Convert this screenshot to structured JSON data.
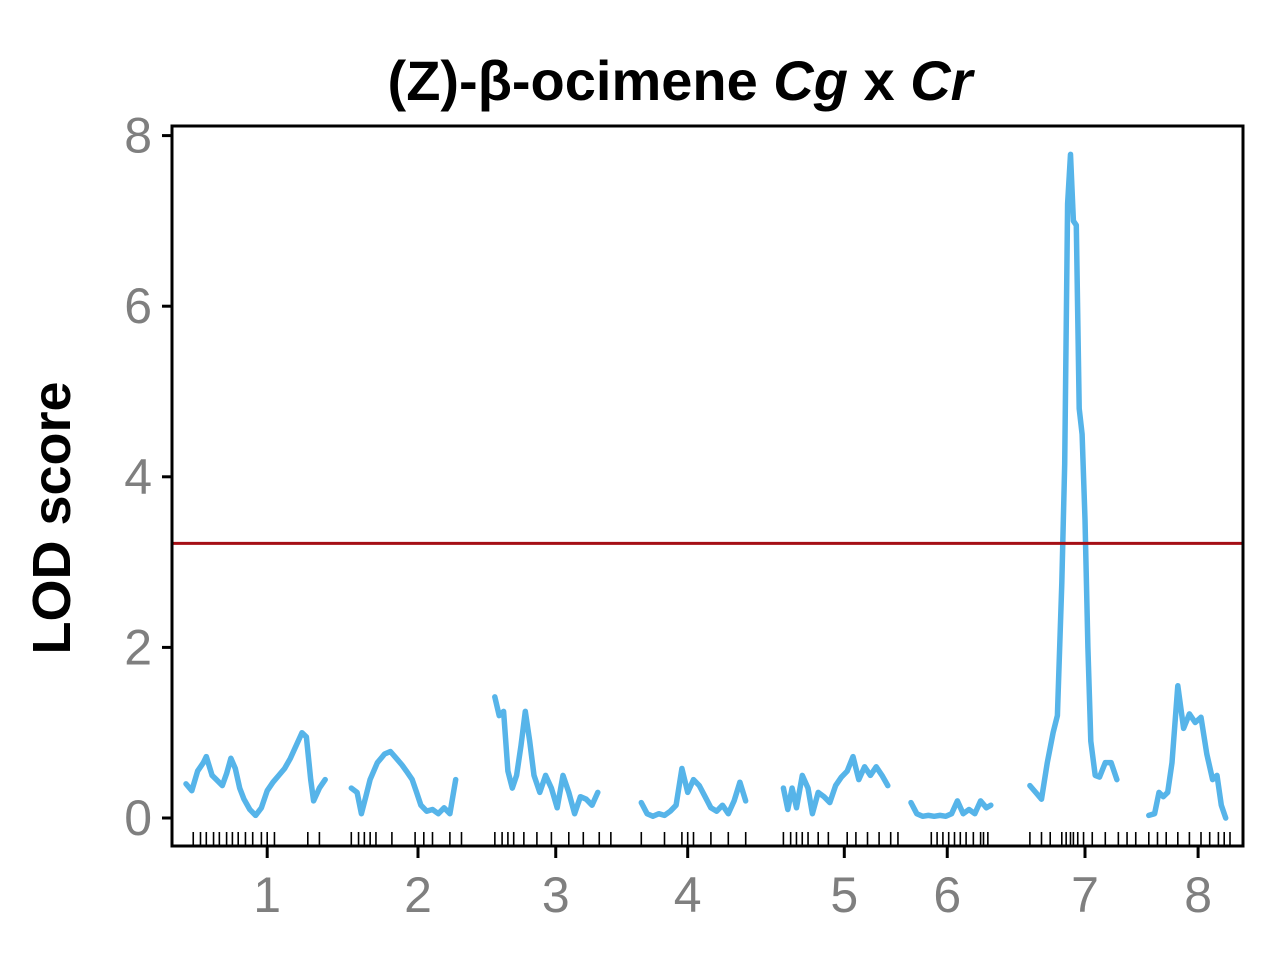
{
  "chart_data": {
    "type": "line",
    "title_main": "(Z)-β-ocimene ",
    "title_italic_1": "Cg",
    "title_mid": " x ",
    "title_italic_2": "Cr",
    "ylabel": "LOD score",
    "xlabel": "",
    "ylim": [
      0,
      8
    ],
    "yticks": [
      "0",
      "2",
      "4",
      "6",
      "8"
    ],
    "threshold": 3.22,
    "colors": {
      "series": "#56b4e9",
      "threshold": "#a50f15",
      "ticks": "#7f7f7f"
    },
    "chromosomes": [
      {
        "label": "1",
        "start": 0.0,
        "end": 1.0,
        "center": 0.56,
        "markers": [
          0.05,
          0.1,
          0.14,
          0.19,
          0.23,
          0.28,
          0.32,
          0.36,
          0.41,
          0.46,
          0.52,
          0.56,
          0.61,
          0.84,
          0.92
        ],
        "lod": [
          [
            0.0,
            0.4
          ],
          [
            0.04,
            0.32
          ],
          [
            0.08,
            0.55
          ],
          [
            0.12,
            0.65
          ],
          [
            0.14,
            0.72
          ],
          [
            0.18,
            0.5
          ],
          [
            0.21,
            0.45
          ],
          [
            0.25,
            0.38
          ],
          [
            0.28,
            0.52
          ],
          [
            0.31,
            0.7
          ],
          [
            0.34,
            0.58
          ],
          [
            0.37,
            0.35
          ],
          [
            0.4,
            0.22
          ],
          [
            0.44,
            0.1
          ],
          [
            0.48,
            0.03
          ],
          [
            0.52,
            0.12
          ],
          [
            0.56,
            0.32
          ],
          [
            0.6,
            0.42
          ],
          [
            0.64,
            0.5
          ],
          [
            0.68,
            0.58
          ],
          [
            0.72,
            0.7
          ],
          [
            0.76,
            0.85
          ],
          [
            0.8,
            1.0
          ],
          [
            0.83,
            0.95
          ],
          [
            0.86,
            0.45
          ],
          [
            0.88,
            0.2
          ],
          [
            0.92,
            0.35
          ],
          [
            0.96,
            0.45
          ]
        ]
      },
      {
        "label": "2",
        "start": 1.14,
        "end": 1.99,
        "center": 1.6,
        "markers": [
          1.14,
          1.19,
          1.23,
          1.27,
          1.31,
          1.42,
          1.58,
          1.64,
          1.7,
          1.82,
          1.9
        ],
        "lod": [
          [
            1.14,
            0.35
          ],
          [
            1.18,
            0.3
          ],
          [
            1.21,
            0.05
          ],
          [
            1.24,
            0.25
          ],
          [
            1.27,
            0.45
          ],
          [
            1.32,
            0.65
          ],
          [
            1.37,
            0.75
          ],
          [
            1.41,
            0.78
          ],
          [
            1.45,
            0.7
          ],
          [
            1.49,
            0.62
          ],
          [
            1.52,
            0.55
          ],
          [
            1.56,
            0.45
          ],
          [
            1.59,
            0.3
          ],
          [
            1.62,
            0.15
          ],
          [
            1.66,
            0.08
          ],
          [
            1.7,
            0.1
          ],
          [
            1.74,
            0.05
          ],
          [
            1.78,
            0.12
          ],
          [
            1.82,
            0.05
          ],
          [
            1.86,
            0.45
          ]
        ]
      },
      {
        "label": "3",
        "start": 2.13,
        "end": 3.0,
        "center": 2.55,
        "markers": [
          2.13,
          2.18,
          2.22,
          2.26,
          2.33,
          2.42,
          2.52,
          2.64,
          2.74,
          2.85,
          2.93
        ],
        "lod": [
          [
            2.13,
            1.42
          ],
          [
            2.16,
            1.2
          ],
          [
            2.19,
            1.25
          ],
          [
            2.22,
            0.55
          ],
          [
            2.25,
            0.35
          ],
          [
            2.28,
            0.5
          ],
          [
            2.31,
            0.85
          ],
          [
            2.34,
            1.25
          ],
          [
            2.37,
            0.9
          ],
          [
            2.4,
            0.5
          ],
          [
            2.44,
            0.3
          ],
          [
            2.48,
            0.5
          ],
          [
            2.52,
            0.35
          ],
          [
            2.56,
            0.12
          ],
          [
            2.6,
            0.5
          ],
          [
            2.64,
            0.3
          ],
          [
            2.68,
            0.05
          ],
          [
            2.72,
            0.25
          ],
          [
            2.76,
            0.22
          ],
          [
            2.8,
            0.15
          ],
          [
            2.84,
            0.3
          ]
        ]
      },
      {
        "label": "4",
        "start": 3.14,
        "end": 3.97,
        "center": 3.46,
        "markers": [
          3.14,
          3.3,
          3.42,
          3.46,
          3.5,
          3.62,
          3.74,
          3.86
        ],
        "lod": [
          [
            3.14,
            0.18
          ],
          [
            3.18,
            0.05
          ],
          [
            3.22,
            0.02
          ],
          [
            3.26,
            0.05
          ],
          [
            3.3,
            0.03
          ],
          [
            3.34,
            0.08
          ],
          [
            3.38,
            0.15
          ],
          [
            3.42,
            0.58
          ],
          [
            3.46,
            0.3
          ],
          [
            3.5,
            0.45
          ],
          [
            3.54,
            0.38
          ],
          [
            3.58,
            0.25
          ],
          [
            3.62,
            0.12
          ],
          [
            3.66,
            0.08
          ],
          [
            3.7,
            0.15
          ],
          [
            3.74,
            0.05
          ],
          [
            3.78,
            0.2
          ],
          [
            3.82,
            0.42
          ],
          [
            3.86,
            0.2
          ]
        ]
      },
      {
        "label": "5",
        "start": 4.12,
        "end": 4.99,
        "center": 4.54,
        "markers": [
          4.12,
          4.17,
          4.21,
          4.25,
          4.29,
          4.36,
          4.43,
          4.56,
          4.62,
          4.7,
          4.78,
          4.86,
          4.91
        ],
        "lod": [
          [
            4.12,
            0.35
          ],
          [
            4.15,
            0.1
          ],
          [
            4.18,
            0.35
          ],
          [
            4.21,
            0.12
          ],
          [
            4.25,
            0.5
          ],
          [
            4.29,
            0.35
          ],
          [
            4.32,
            0.05
          ],
          [
            4.36,
            0.3
          ],
          [
            4.4,
            0.25
          ],
          [
            4.44,
            0.18
          ],
          [
            4.48,
            0.38
          ],
          [
            4.52,
            0.48
          ],
          [
            4.56,
            0.55
          ],
          [
            4.6,
            0.72
          ],
          [
            4.64,
            0.45
          ],
          [
            4.68,
            0.6
          ],
          [
            4.72,
            0.5
          ],
          [
            4.76,
            0.6
          ],
          [
            4.8,
            0.5
          ],
          [
            4.84,
            0.38
          ]
        ]
      },
      {
        "label": "6",
        "start": 5.0,
        "end": 5.88,
        "center": 5.25,
        "markers": [
          5.14,
          5.18,
          5.22,
          5.26,
          5.3,
          5.34,
          5.38,
          5.43,
          5.48,
          5.5,
          5.53
        ],
        "lod": [
          [
            5.0,
            0.18
          ],
          [
            5.04,
            0.05
          ],
          [
            5.08,
            0.02
          ],
          [
            5.12,
            0.03
          ],
          [
            5.16,
            0.02
          ],
          [
            5.2,
            0.03
          ],
          [
            5.24,
            0.02
          ],
          [
            5.28,
            0.05
          ],
          [
            5.32,
            0.2
          ],
          [
            5.36,
            0.05
          ],
          [
            5.4,
            0.1
          ],
          [
            5.44,
            0.05
          ],
          [
            5.48,
            0.2
          ],
          [
            5.52,
            0.12
          ],
          [
            5.55,
            0.15
          ]
        ]
      },
      {
        "label": "7",
        "start": 5.72,
        "end": 6.62,
        "center": 6.2,
        "markers": [
          5.82,
          5.9,
          5.96,
          6.04,
          6.07,
          6.1,
          6.12,
          6.15,
          6.19,
          6.25,
          6.34,
          6.43,
          6.49,
          6.55
        ],
        "lod": [
          [
            5.82,
            0.38
          ],
          [
            5.86,
            0.3
          ],
          [
            5.9,
            0.22
          ],
          [
            5.94,
            0.65
          ],
          [
            5.98,
            1.0
          ],
          [
            6.01,
            1.2
          ],
          [
            6.04,
            2.75
          ],
          [
            6.06,
            4.15
          ],
          [
            6.08,
            7.2
          ],
          [
            6.1,
            7.78
          ],
          [
            6.12,
            7.0
          ],
          [
            6.14,
            6.95
          ],
          [
            6.16,
            4.8
          ],
          [
            6.18,
            4.5
          ],
          [
            6.2,
            3.5
          ],
          [
            6.22,
            2.0
          ],
          [
            6.24,
            0.9
          ],
          [
            6.27,
            0.5
          ],
          [
            6.3,
            0.48
          ],
          [
            6.34,
            0.65
          ],
          [
            6.38,
            0.65
          ],
          [
            6.42,
            0.45
          ]
        ]
      },
      {
        "label": "8",
        "start": 6.64,
        "end": 7.4,
        "center": 6.98,
        "markers": [
          6.64,
          6.7,
          6.76,
          6.84,
          6.92,
          7.0,
          7.06,
          7.12,
          7.16,
          7.2
        ],
        "lod": [
          [
            6.64,
            0.03
          ],
          [
            6.68,
            0.05
          ],
          [
            6.71,
            0.3
          ],
          [
            6.74,
            0.25
          ],
          [
            6.77,
            0.3
          ],
          [
            6.8,
            0.65
          ],
          [
            6.84,
            1.55
          ],
          [
            6.88,
            1.05
          ],
          [
            6.92,
            1.22
          ],
          [
            6.96,
            1.12
          ],
          [
            7.0,
            1.18
          ],
          [
            7.04,
            0.75
          ],
          [
            7.08,
            0.45
          ],
          [
            7.11,
            0.5
          ],
          [
            7.14,
            0.15
          ],
          [
            7.17,
            0.0
          ]
        ]
      }
    ]
  }
}
